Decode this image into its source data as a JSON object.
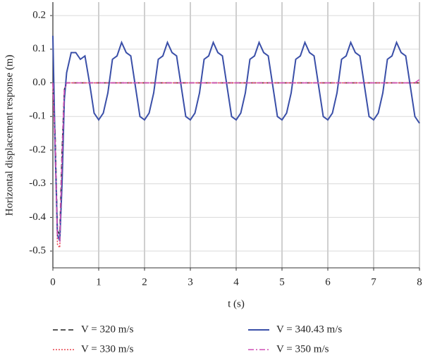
{
  "chart_data": {
    "type": "line",
    "xlabel": "t (s)",
    "ylabel": "Horizontal displacement response (m)",
    "xlim": [
      0,
      8
    ],
    "xticks": [
      0,
      1,
      2,
      3,
      4,
      5,
      6,
      7,
      8
    ],
    "ylim": [
      -0.55,
      0.24
    ],
    "yticks": [
      -0.5,
      -0.4,
      -0.3,
      -0.2,
      -0.1,
      {
        "value": 0,
        "label": "0.0"
      },
      0.1,
      0.2
    ],
    "grid": true,
    "x": [
      0,
      0.05,
      0.1,
      0.15,
      0.2,
      0.25,
      0.3,
      0.4,
      0.5,
      0.6,
      0.7,
      0.8,
      0.9,
      1.0,
      1.1,
      1.2,
      1.3,
      1.4,
      1.5,
      1.6,
      1.7,
      1.8,
      1.9,
      2.0,
      2.1,
      2.2,
      2.3,
      2.4,
      2.5,
      2.6,
      2.7,
      2.8,
      2.9,
      3.0,
      3.1,
      3.2,
      3.3,
      3.4,
      3.5,
      3.6,
      3.7,
      3.8,
      3.9,
      4.0,
      4.1,
      4.2,
      4.3,
      4.4,
      4.5,
      4.6,
      4.7,
      4.8,
      4.9,
      5.0,
      5.1,
      5.2,
      5.3,
      5.4,
      5.5,
      5.6,
      5.7,
      5.8,
      5.9,
      6.0,
      6.1,
      6.2,
      6.3,
      6.4,
      6.5,
      6.6,
      6.7,
      6.8,
      6.9,
      7.0,
      7.1,
      7.2,
      7.3,
      7.4,
      7.5,
      7.6,
      7.7,
      7.8,
      7.9,
      8.0
    ],
    "series": [
      {
        "name": "V = 320 m/s",
        "color": "#222222",
        "dash": "dashed",
        "values": [
          0,
          -0.15,
          -0.44,
          -0.45,
          -0.2,
          -0.02,
          0,
          0,
          0,
          0,
          0,
          0,
          0,
          0,
          0,
          0,
          0,
          0,
          0,
          0,
          0,
          0,
          0,
          0,
          0,
          0,
          0,
          0,
          0,
          0,
          0,
          0,
          0,
          0,
          0,
          0,
          0,
          0,
          0,
          0,
          0,
          0,
          0,
          0,
          0,
          0,
          0,
          0,
          0,
          0,
          0,
          0,
          0,
          0,
          0,
          0,
          0,
          0,
          0,
          0,
          0,
          0,
          0,
          0,
          0,
          0,
          0,
          0,
          0,
          0,
          0,
          0,
          0,
          0,
          0,
          0,
          0,
          0,
          0,
          0,
          0,
          0,
          0,
          0
        ]
      },
      {
        "name": "V = 330 m/s",
        "color": "#e8434f",
        "dash": "dotted",
        "values": [
          0,
          -0.2,
          -0.48,
          -0.49,
          -0.25,
          -0.03,
          0,
          0,
          0,
          0,
          0,
          0,
          0,
          0,
          0,
          0,
          0,
          0,
          0,
          0,
          0,
          0,
          0,
          0,
          0,
          0,
          0,
          0,
          0,
          0,
          0,
          0,
          0,
          0,
          0,
          0,
          0,
          0,
          0,
          0,
          0,
          0,
          0,
          0,
          0,
          0,
          0,
          0,
          0,
          0,
          0,
          0,
          0,
          0,
          0,
          0,
          0,
          0,
          0,
          0,
          0,
          0,
          0,
          0,
          0,
          0,
          0,
          0,
          0,
          0,
          0,
          0,
          0,
          0,
          0,
          0,
          0,
          0,
          0,
          0,
          0,
          0,
          0,
          0
        ]
      },
      {
        "name": "V = 340.43 m/s",
        "color": "#3a4fa8",
        "dash": "solid",
        "values": [
          0.14,
          -0.2,
          -0.45,
          -0.47,
          -0.3,
          -0.05,
          0.03,
          0.09,
          0.09,
          0.07,
          0.08,
          0.0,
          -0.09,
          -0.11,
          -0.09,
          -0.03,
          0.07,
          0.08,
          0.12,
          0.09,
          0.08,
          -0.01,
          -0.1,
          -0.11,
          -0.09,
          -0.03,
          0.07,
          0.08,
          0.12,
          0.09,
          0.08,
          -0.01,
          -0.1,
          -0.11,
          -0.09,
          -0.03,
          0.07,
          0.08,
          0.12,
          0.09,
          0.08,
          -0.01,
          -0.1,
          -0.11,
          -0.09,
          -0.03,
          0.07,
          0.08,
          0.12,
          0.09,
          0.08,
          -0.01,
          -0.1,
          -0.11,
          -0.09,
          -0.03,
          0.07,
          0.08,
          0.12,
          0.09,
          0.08,
          -0.01,
          -0.1,
          -0.11,
          -0.09,
          -0.03,
          0.07,
          0.08,
          0.12,
          0.09,
          0.08,
          -0.01,
          -0.1,
          -0.11,
          -0.09,
          -0.03,
          0.07,
          0.08,
          0.12,
          0.09,
          0.08,
          -0.01,
          -0.1,
          -0.12
        ]
      },
      {
        "name": "V = 350 m/s",
        "color": "#d14fb5",
        "dash": "dashdot",
        "values": [
          0,
          -0.18,
          -0.46,
          -0.47,
          -0.22,
          -0.02,
          0,
          0,
          0,
          0,
          0,
          0,
          0,
          0,
          0,
          0,
          0,
          0,
          0,
          0,
          0,
          0,
          0,
          0,
          0,
          0,
          0,
          0,
          0,
          0,
          0,
          0,
          0,
          0,
          0,
          0,
          0,
          0,
          0,
          0,
          0,
          0,
          0,
          0,
          0,
          0,
          0,
          0,
          0,
          0,
          0,
          0,
          0,
          0,
          0,
          0,
          0,
          0,
          0,
          0,
          0,
          0,
          0,
          0,
          0,
          0,
          0,
          0,
          0,
          0,
          0,
          0,
          0,
          0,
          0,
          0,
          0,
          0,
          0,
          0,
          0,
          0,
          0,
          0.01
        ]
      }
    ]
  }
}
